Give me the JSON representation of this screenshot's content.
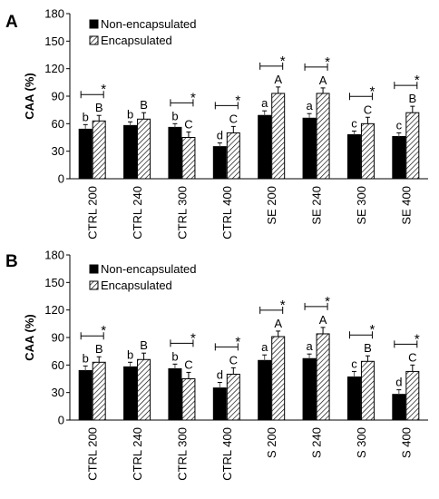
{
  "chart_data": [
    {
      "type": "bar",
      "panel_label": "A",
      "ylabel": "CAA (%)",
      "ylim": [
        0,
        180
      ],
      "yticks": [
        0,
        30,
        60,
        90,
        120,
        150,
        180
      ],
      "grid": false,
      "legend_position": "top-left",
      "categories": [
        "CTRL 200",
        "CTRL 240",
        "CTRL 300",
        "CTRL 400",
        "SE 200",
        "SE 240",
        "SE 300",
        "SE 400"
      ],
      "series": [
        {
          "name": "Non-encapsulated",
          "fill": "solid-black",
          "values": [
            54,
            58,
            56,
            35,
            69,
            66,
            48,
            46
          ],
          "errors": [
            5,
            4,
            4,
            4,
            5,
            5,
            4,
            4
          ],
          "labels": [
            "b",
            "b",
            "b",
            "d",
            "a",
            "a",
            "c",
            "c"
          ]
        },
        {
          "name": "Encapsulated",
          "fill": "hatched",
          "values": [
            63,
            65,
            45,
            50,
            93,
            93,
            60,
            72
          ],
          "errors": [
            6,
            7,
            6,
            7,
            7,
            6,
            7,
            7
          ],
          "labels": [
            "B",
            "B",
            "C",
            "C",
            "A",
            "A",
            "C",
            "B"
          ]
        }
      ],
      "significance": [
        "*",
        "",
        "*",
        "*",
        "*",
        "*",
        "*",
        "*"
      ]
    },
    {
      "type": "bar",
      "panel_label": "B",
      "ylabel": "CAA (%)",
      "ylim": [
        0,
        180
      ],
      "yticks": [
        0,
        30,
        60,
        90,
        120,
        150,
        180
      ],
      "grid": false,
      "legend_position": "top-left",
      "categories": [
        "CTRL 200",
        "CTRL 240",
        "CTRL 300",
        "CTRL 400",
        "S 200",
        "S 240",
        "S 300",
        "S 400"
      ],
      "series": [
        {
          "name": "Non-encapsulated",
          "fill": "solid-black",
          "values": [
            54,
            58,
            56,
            35,
            65,
            67,
            47,
            28
          ],
          "errors": [
            5,
            5,
            5,
            6,
            6,
            5,
            6,
            5
          ],
          "labels": [
            "b",
            "b",
            "b",
            "d",
            "a",
            "a",
            "c",
            "d"
          ]
        },
        {
          "name": "Encapsulated",
          "fill": "hatched",
          "values": [
            63,
            66,
            45,
            50,
            91,
            94,
            64,
            53
          ],
          "errors": [
            6,
            7,
            7,
            7,
            6,
            7,
            6,
            7
          ],
          "labels": [
            "B",
            "B",
            "C",
            "C",
            "A",
            "A",
            "B",
            "C"
          ]
        }
      ],
      "significance": [
        "*",
        "",
        "*",
        "*",
        "*",
        "*",
        "*",
        "*"
      ]
    }
  ]
}
